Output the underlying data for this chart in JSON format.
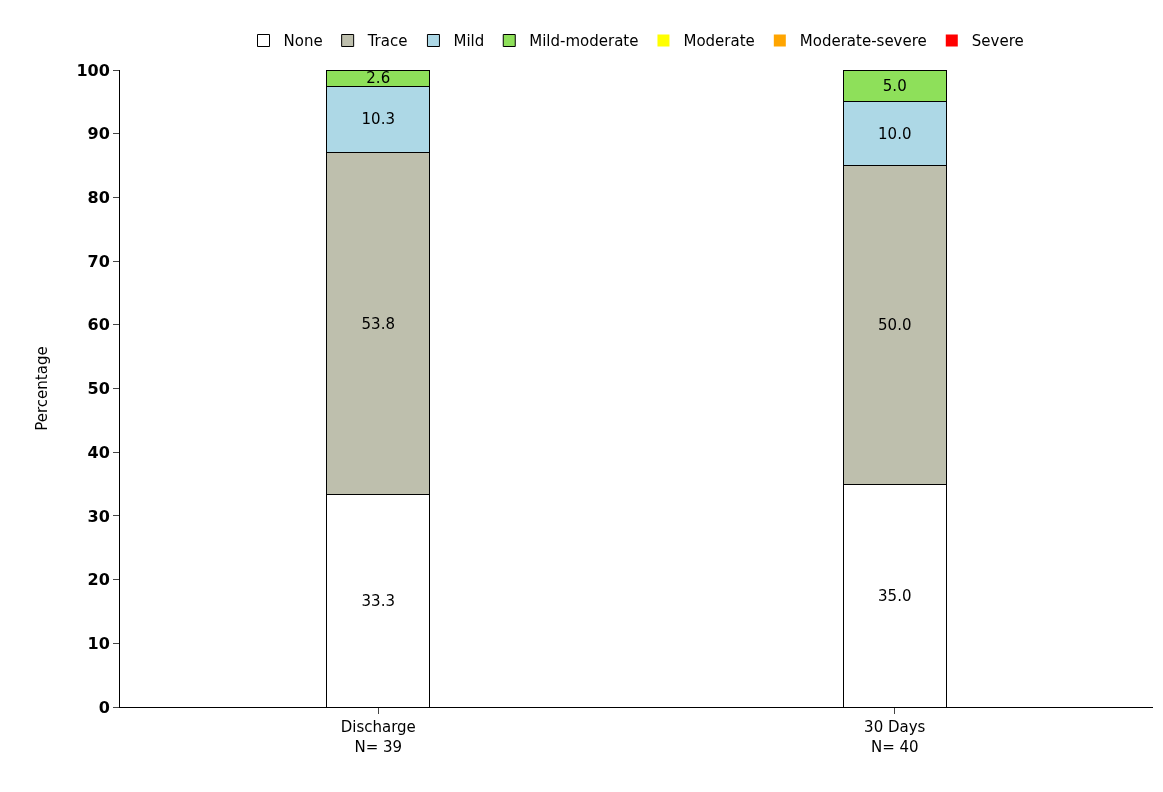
{
  "chart_data": {
    "type": "bar",
    "stacked": true,
    "ylabel": "Percentage",
    "categories": [
      "Discharge\nN= 39",
      "30 Days\nN= 40"
    ],
    "ylim": [
      0,
      100
    ],
    "yticks": [
      0,
      10,
      20,
      30,
      40,
      50,
      60,
      70,
      80,
      90,
      100
    ],
    "grid": false,
    "legend": "top",
    "series": [
      {
        "name": "None",
        "color": "#ffffff",
        "values": [
          33.3,
          35.0
        ],
        "value_labels": [
          "33.3",
          "35.0"
        ]
      },
      {
        "name": "Trace",
        "color": "#bebfad",
        "values": [
          53.8,
          50.0
        ],
        "value_labels": [
          "53.8",
          "50.0"
        ]
      },
      {
        "name": "Mild",
        "color": "#add8e6",
        "values": [
          10.3,
          10.0
        ],
        "value_labels": [
          "10.3",
          "10.0"
        ]
      },
      {
        "name": "Mild-moderate",
        "color": "#8ee05a",
        "values": [
          2.6,
          5.0
        ],
        "value_labels": [
          "2.6",
          "5.0"
        ]
      },
      {
        "name": "Moderate",
        "color": "#ffff00",
        "values": [
          0,
          0
        ],
        "value_labels": [
          null,
          null
        ]
      },
      {
        "name": "Moderate-severe",
        "color": "#ffa500",
        "values": [
          0,
          0
        ],
        "value_labels": [
          null,
          null
        ]
      },
      {
        "name": "Severe",
        "color": "#ff0000",
        "values": [
          0,
          0
        ],
        "value_labels": [
          null,
          null
        ]
      }
    ]
  }
}
